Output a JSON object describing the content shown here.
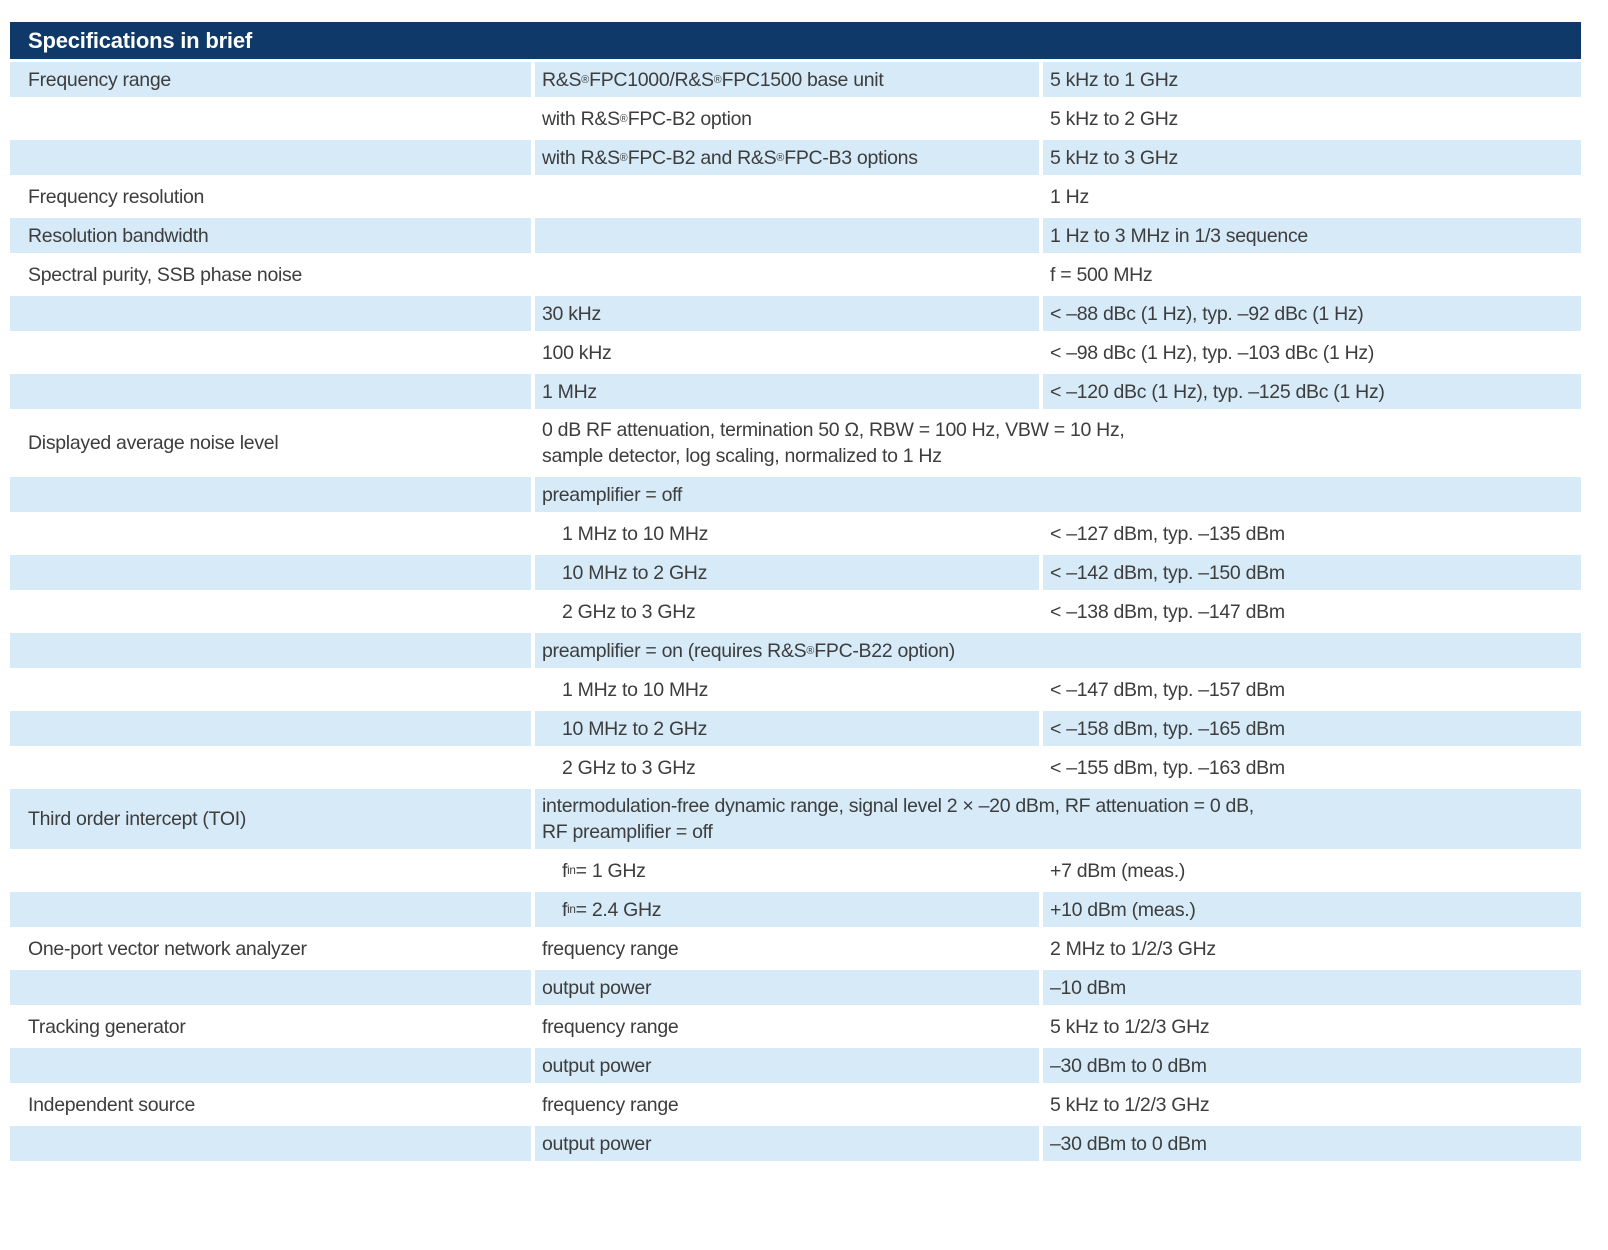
{
  "header": {
    "title": "Specifications in brief"
  },
  "colors": {
    "header_bg": "#0e3968",
    "header_text": "#ffffff",
    "row_highlight_bg": "#d6eaf8",
    "body_text": "#3d3d3d"
  },
  "table": {
    "columns": [
      "parameter",
      "condition",
      "value"
    ],
    "rows": [
      {
        "param": "Frequency range",
        "condition": "R&S®FPC1000/R&S®FPC1500 base unit",
        "value": "5 kHz to 1 GHz"
      },
      {
        "param": "",
        "condition": "with R&S®FPC-B2 option",
        "value": "5 kHz to 2 GHz"
      },
      {
        "param": "",
        "condition": "with R&S®FPC-B2 and R&S®FPC-B3 options",
        "value": "5 kHz to 3 GHz"
      },
      {
        "param": "Frequency resolution",
        "condition": "",
        "value": "1 Hz"
      },
      {
        "param": "Resolution bandwidth",
        "condition": "",
        "value": "1 Hz to 3 MHz in 1/3 sequence"
      },
      {
        "param": "Spectral purity, SSB phase noise",
        "condition": "",
        "value": "f = 500 MHz"
      },
      {
        "param": "",
        "condition": "30 kHz",
        "value": "< –88 dBc (1 Hz), typ. –92 dBc (1 Hz)"
      },
      {
        "param": "",
        "condition": "100 kHz",
        "value": "< –98 dBc (1 Hz), typ. –103 dBc (1 Hz)"
      },
      {
        "param": "",
        "condition": "1 MHz",
        "value": "< –120 dBc (1 Hz), typ. –125 dBc (1 Hz)"
      },
      {
        "param": "Displayed average noise level",
        "condition": "0 dB RF attenuation, termination 50 Ω, RBW = 100 Hz, VBW = 10 Hz,\nsample detector, log scaling, normalized to 1 Hz",
        "span": true
      },
      {
        "param": "",
        "condition": "preamplifier = off",
        "span": true
      },
      {
        "param": "",
        "condition": "1 MHz to 10 MHz",
        "value": "< –127 dBm, typ. –135 dBm",
        "indent": true
      },
      {
        "param": "",
        "condition": "10 MHz to 2 GHz",
        "value": "< –142 dBm, typ. –150 dBm",
        "indent": true
      },
      {
        "param": "",
        "condition": "2 GHz to 3 GHz",
        "value": "< –138 dBm, typ. –147 dBm",
        "indent": true
      },
      {
        "param": "",
        "condition": "preamplifier = on (requires R&S®FPC-B22 option)",
        "span": true
      },
      {
        "param": "",
        "condition": "1 MHz to 10 MHz",
        "value": "< –147 dBm, typ. –157 dBm",
        "indent": true
      },
      {
        "param": "",
        "condition": "10 MHz to 2 GHz",
        "value": "< –158 dBm, typ. –165 dBm",
        "indent": true
      },
      {
        "param": "",
        "condition": "2 GHz to 3 GHz",
        "value": "< –155 dBm, typ. –163 dBm",
        "indent": true
      },
      {
        "param": "Third order intercept (TOI)",
        "condition": "intermodulation-free dynamic range, signal level 2 × –20 dBm, RF attenuation = 0 dB,\nRF preamplifier = off",
        "span": true
      },
      {
        "param": "",
        "condition_sub": {
          "base": "f",
          "sub": "in",
          "rest": " = 1 GHz"
        },
        "value": "+7 dBm (meas.)",
        "indent": true
      },
      {
        "param": "",
        "condition_sub": {
          "base": "f",
          "sub": "in",
          "rest": " = 2.4 GHz"
        },
        "value": "+10 dBm (meas.)",
        "indent": true
      },
      {
        "param": "One-port vector network analyzer",
        "condition": "frequency range",
        "value": "2 MHz to 1/2/3 GHz"
      },
      {
        "param": "",
        "condition": "output power",
        "value": "–10 dBm"
      },
      {
        "param": "Tracking generator",
        "condition": "frequency range",
        "value": "5 kHz to 1/2/3 GHz"
      },
      {
        "param": "",
        "condition": "output power",
        "value": "–30 dBm to 0 dBm"
      },
      {
        "param": "Independent source",
        "condition": "frequency range",
        "value": "5 kHz to 1/2/3 GHz"
      },
      {
        "param": "",
        "condition": "output power",
        "value": "–30 dBm to 0 dBm"
      }
    ]
  }
}
